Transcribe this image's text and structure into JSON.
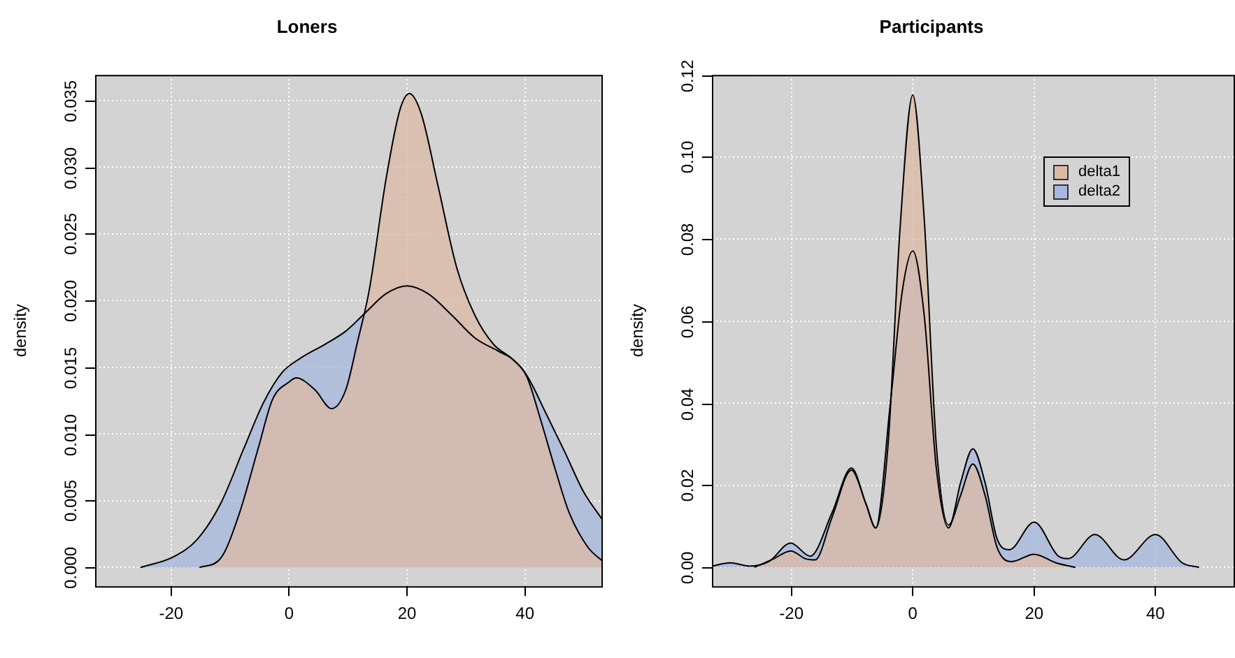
{
  "chart_data": [
    {
      "type": "area",
      "title": "Loners",
      "ylabel": "density",
      "grid": true,
      "xlim": [
        -32.9,
        53.2
      ],
      "xticks": [
        -20,
        0,
        20,
        40
      ],
      "ylim": [
        -0.0014,
        0.0369
      ],
      "yticks": [
        {
          "value": 0,
          "label": "0.000"
        },
        {
          "value": 0.005,
          "label": "0.005"
        },
        {
          "value": 0.01,
          "label": "0.010"
        },
        {
          "value": 0.015,
          "label": "0.015"
        },
        {
          "value": 0.02,
          "label": "0.020"
        },
        {
          "value": 0.025,
          "label": "0.025"
        },
        {
          "value": 0.03,
          "label": "0.030"
        },
        {
          "value": 0.035,
          "label": "0.035"
        }
      ],
      "series": [
        {
          "color": "#dcb9a5",
          "x": [
            -15.2,
            -11.6,
            -8.4,
            -5.2,
            -2.8,
            0,
            1.2,
            4.4,
            7.2,
            9.6,
            11.6,
            13.6,
            16.4,
            18.8,
            20.4,
            22.4,
            25.2,
            28.4,
            31.5,
            34.7,
            37.9,
            40.3,
            42.7,
            45.1,
            47.5,
            50.7,
            53.1
          ],
          "values": [
            0,
            0.0007,
            0.0041,
            0.009,
            0.0126,
            0.0139,
            0.0142,
            0.0133,
            0.0119,
            0.0133,
            0.0169,
            0.0208,
            0.029,
            0.0343,
            0.0355,
            0.034,
            0.0287,
            0.0225,
            0.0189,
            0.0167,
            0.0156,
            0.0143,
            0.011,
            0.0074,
            0.0041,
            0.0015,
            0.0005
          ]
        },
        {
          "color": "#a6b8de",
          "x": [
            -25.2,
            -19.6,
            -15.6,
            -11.6,
            -7.6,
            -4.4,
            -1.2,
            2,
            6,
            9.6,
            13.2,
            16.4,
            20,
            23.6,
            27.6,
            31.5,
            35.5,
            37.9,
            40.3,
            43.5,
            46.7,
            49.9,
            53.1
          ],
          "values": [
            0,
            0.0008,
            0.0021,
            0.0048,
            0.009,
            0.0123,
            0.0146,
            0.0157,
            0.0167,
            0.0177,
            0.0192,
            0.0205,
            0.0211,
            0.0205,
            0.0189,
            0.0172,
            0.0162,
            0.0156,
            0.0144,
            0.0116,
            0.0087,
            0.0057,
            0.0036
          ]
        }
      ]
    },
    {
      "type": "area",
      "title": "Participants",
      "ylabel": "density",
      "grid": true,
      "legend": "top right",
      "xlim": [
        -33.1,
        53.1
      ],
      "xticks": [
        -20,
        0,
        20,
        40
      ],
      "ylim": [
        -0.0046,
        0.12
      ],
      "yticks": [
        {
          "value": 0,
          "label": "0.00"
        },
        {
          "value": 0.02,
          "label": "0.02"
        },
        {
          "value": 0.04,
          "label": "0.04"
        },
        {
          "value": 0.06,
          "label": "0.06"
        },
        {
          "value": 0.08,
          "label": "0.08"
        },
        {
          "value": 0.1,
          "label": "0.10"
        },
        {
          "value": 0.12,
          "label": "0.12"
        }
      ],
      "series": [
        {
          "name": "delta1",
          "color": "#dcb9a5",
          "x": [
            -26.1,
            -22.9,
            -20.1,
            -17.7,
            -16.1,
            -13.3,
            -10.1,
            -7.7,
            -6.1,
            -4.1,
            -2.1,
            0,
            1.9,
            3.9,
            5.9,
            7.9,
            9.9,
            11.9,
            13.9,
            16.3,
            20,
            23.6,
            26.8
          ],
          "values": [
            0,
            0.0021,
            0.004,
            0.0021,
            0.0018,
            0.0122,
            0.0237,
            0.0154,
            0.0096,
            0.0293,
            0.0825,
            0.1151,
            0.0846,
            0.0293,
            0.0103,
            0.0176,
            0.0252,
            0.0176,
            0.0048,
            0.0014,
            0.0032,
            0.0011,
            0
          ]
        },
        {
          "name": "delta2",
          "color": "#a6b8de",
          "x": [
            -33.1,
            -30.1,
            -26.9,
            -23.7,
            -20.1,
            -16.9,
            -13.3,
            -10.1,
            -7.7,
            -6.1,
            -3.7,
            -1.7,
            0,
            1.9,
            3.9,
            5.9,
            7.9,
            9.9,
            11.9,
            13.9,
            15.9,
            20,
            24,
            25.6,
            30,
            34.8,
            40,
            44.4,
            47.2
          ],
          "values": [
            0.0003,
            0.0011,
            0.0003,
            0.0014,
            0.0059,
            0.0027,
            0.0133,
            0.0242,
            0.0154,
            0.0096,
            0.0399,
            0.0676,
            0.0771,
            0.0612,
            0.0239,
            0.0096,
            0.0207,
            0.0289,
            0.0207,
            0.0069,
            0.0043,
            0.011,
            0.0027,
            0.0021,
            0.008,
            0.0018,
            0.008,
            0.0011,
            0
          ]
        }
      ]
    }
  ]
}
